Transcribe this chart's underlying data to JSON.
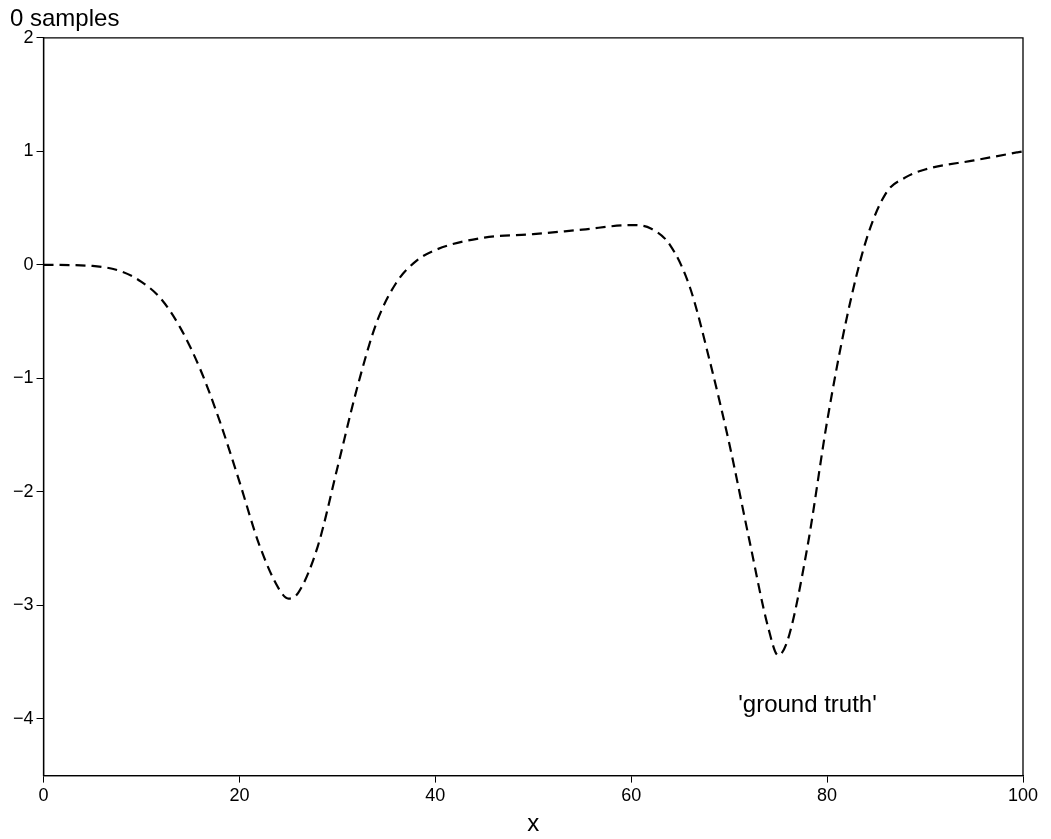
{
  "chart_data": {
    "type": "line",
    "title": "0 samples",
    "xlabel": "x",
    "x": [
      0,
      5,
      8,
      10,
      12,
      14,
      16,
      18,
      20,
      22,
      24,
      25,
      26,
      28,
      30,
      32,
      34,
      36,
      38,
      40,
      45,
      50,
      55,
      60,
      62,
      64,
      66,
      68,
      70,
      72,
      74,
      75,
      76,
      78,
      80,
      82,
      84,
      86,
      88,
      90,
      95,
      100
    ],
    "series": [
      {
        "color": "#000000",
        "values": [
          0,
          -0.01,
          -0.06,
          -0.15,
          -0.3,
          -0.56,
          -0.92,
          -1.38,
          -1.91,
          -2.46,
          -2.85,
          -2.94,
          -2.89,
          -2.48,
          -1.79,
          -1.09,
          -0.51,
          -0.16,
          0.03,
          0.13,
          0.24,
          0.27,
          0.31,
          0.35,
          0.32,
          0.17,
          -0.2,
          -0.84,
          -1.57,
          -2.4,
          -3.2,
          -3.44,
          -3.3,
          -2.48,
          -1.38,
          -0.47,
          0.22,
          0.63,
          0.77,
          0.84,
          0.92,
          1.0
        ]
      }
    ],
    "xlim": [
      0,
      100
    ],
    "xticks": [
      0,
      20,
      40,
      60,
      80,
      100
    ],
    "ylim": [
      -4.5,
      2
    ],
    "yticks": [
      -4,
      -3,
      -2,
      -1,
      0,
      1,
      2
    ],
    "grid": false,
    "legend": false,
    "marker": "none",
    "line_style": "dashed",
    "annotations": [
      "'ground truth'"
    ]
  }
}
